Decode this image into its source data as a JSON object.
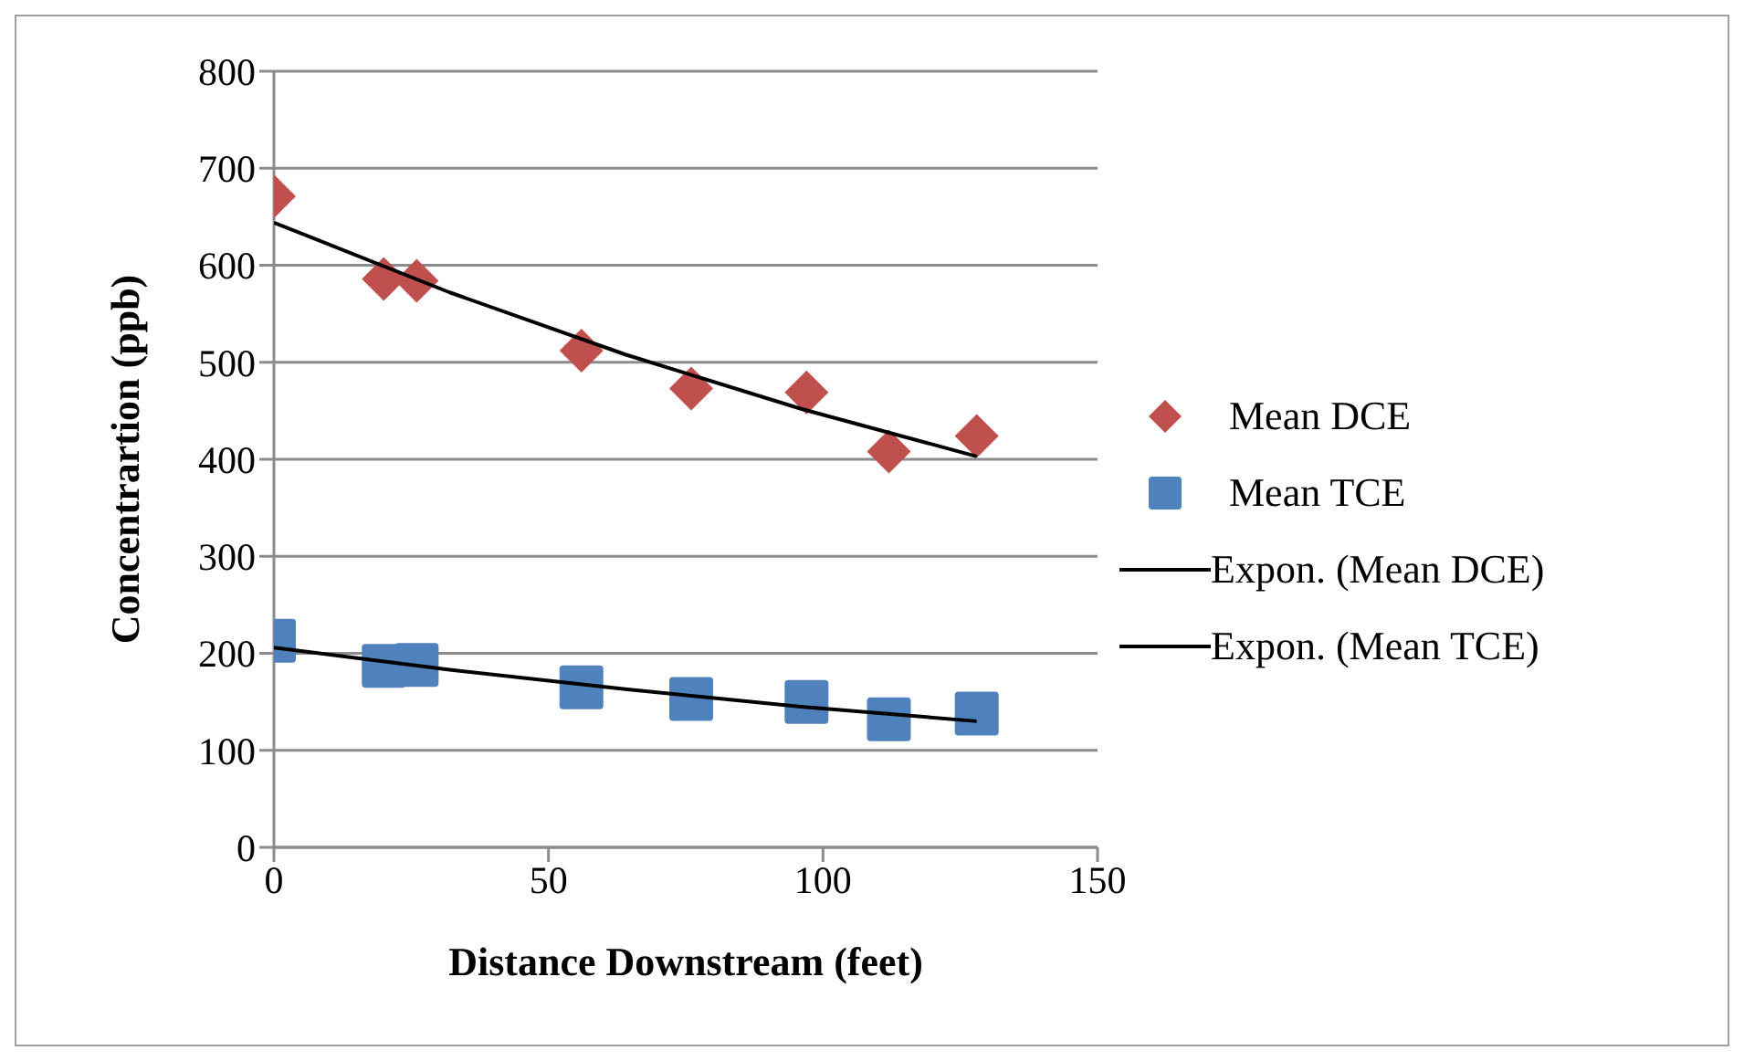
{
  "chart_data": {
    "type": "scatter",
    "xlabel": "Distance Downstream (feet)",
    "ylabel": "Concentrartion (ppb)",
    "xlim": [
      0,
      150
    ],
    "xticks": [
      0,
      50,
      100,
      150
    ],
    "ylim": [
      0,
      800
    ],
    "yticks": [
      0,
      100,
      200,
      300,
      400,
      500,
      600,
      700,
      800
    ],
    "grid": "y",
    "legend": "right",
    "series": [
      {
        "name": "Mean DCE",
        "marker": "diamond",
        "color": "#c0504d",
        "x": [
          0,
          20,
          26,
          56,
          76,
          97,
          112,
          128
        ],
        "values": [
          671,
          586,
          584,
          512,
          473,
          469,
          408,
          424
        ]
      },
      {
        "name": "Mean TCE",
        "marker": "square",
        "color": "#4f81bd",
        "x": [
          0,
          20,
          26,
          56,
          76,
          97,
          112,
          128
        ],
        "values": [
          213,
          187,
          188,
          165,
          153,
          150,
          132,
          138
        ]
      },
      {
        "name": "Expon. (Mean DCE)",
        "type": "line",
        "marker": "none",
        "color": "#000000",
        "x": [
          0,
          32,
          64,
          96,
          128
        ],
        "values": [
          644,
          572,
          508,
          452,
          403
        ]
      },
      {
        "name": "Expon. (Mean TCE)",
        "type": "line",
        "marker": "none",
        "color": "#000000",
        "x": [
          0,
          32,
          64,
          96,
          128
        ],
        "values": [
          206,
          183,
          163,
          145,
          130
        ]
      }
    ]
  }
}
